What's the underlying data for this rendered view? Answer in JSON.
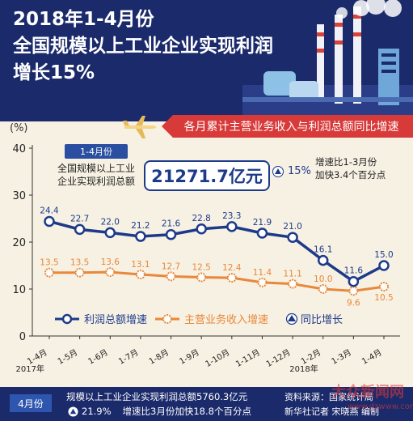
{
  "header": {
    "title_line1": "2018年1-4月份",
    "title_line2": "全国规模以上工业企业实现利润",
    "title_line3": "增长15%"
  },
  "ribbon": {
    "text": "各月累计主营业务收入与利润总额同比增速"
  },
  "callout": {
    "tag": "1-4月份",
    "desc_line1": "全国规模以上工业",
    "desc_line2": "企业实现利润总额",
    "amount": "21271.7亿元",
    "growth": "15%",
    "note_line1": "增速比1-3月份",
    "note_line2": "加快3.4个百分点"
  },
  "footer": {
    "tag": "4月份",
    "line1": "规模以上工业企业实现利润总额5760.3亿元",
    "growth": "21.9%",
    "line2": "增速比3月份加快18.8个百分点",
    "source1": "资料来源：国家统计局",
    "source2": "新华社记者 宋晓燕 编制"
  },
  "watermark": {
    "line1": "大众新闻网",
    "line2": "www.dzwww.com"
  },
  "colors": {
    "navy": "#1b2a6b",
    "profit": "#1d3a8a",
    "revenue": "#e8883a",
    "ribbon": "#d83a3a"
  },
  "chart_data": {
    "type": "line",
    "ylabel": "(%)",
    "ylim": [
      0,
      40
    ],
    "yticks": [
      "0",
      "10",
      "20",
      "30",
      "40"
    ],
    "categories": [
      "1-4月",
      "1-5月",
      "1-6月",
      "1-7月",
      "1-8月",
      "1-9月",
      "1-10月",
      "1-11月",
      "1-12月",
      "1-2月",
      "1-3月",
      "1-4月"
    ],
    "year_labels": [
      {
        "index": 0,
        "text": "2017年"
      },
      {
        "index": 9,
        "text": "2018年"
      }
    ],
    "series": [
      {
        "name": "利润总额增速",
        "color": "#1d3a8a",
        "values": [
          24.4,
          22.7,
          22.0,
          21.2,
          21.6,
          22.8,
          23.3,
          21.9,
          21.0,
          16.1,
          11.6,
          15.0
        ],
        "labels": [
          "24.4",
          "22.7",
          "22.0",
          "21.2",
          "21.6",
          "22.8",
          "23.3",
          "21.9",
          "21.0",
          "16.1",
          "11.6",
          "15.0"
        ]
      },
      {
        "name": "主营业务收入增速",
        "color": "#e8883a",
        "values": [
          13.5,
          13.5,
          13.6,
          13.1,
          12.7,
          12.5,
          12.4,
          11.4,
          11.1,
          10.0,
          9.6,
          10.5
        ],
        "labels": [
          "13.5",
          "13.5",
          "13.6",
          "13.1",
          "12.7",
          "12.5",
          "12.4",
          "11.4",
          "11.1",
          "10.0",
          "9.6",
          "10.5"
        ]
      }
    ],
    "legend": [
      {
        "name": "利润总额增速",
        "marker": "line-circle"
      },
      {
        "name": "主营业务收入增速",
        "marker": "line-gear"
      },
      {
        "name": "同比增长",
        "marker": "triangle"
      }
    ]
  }
}
